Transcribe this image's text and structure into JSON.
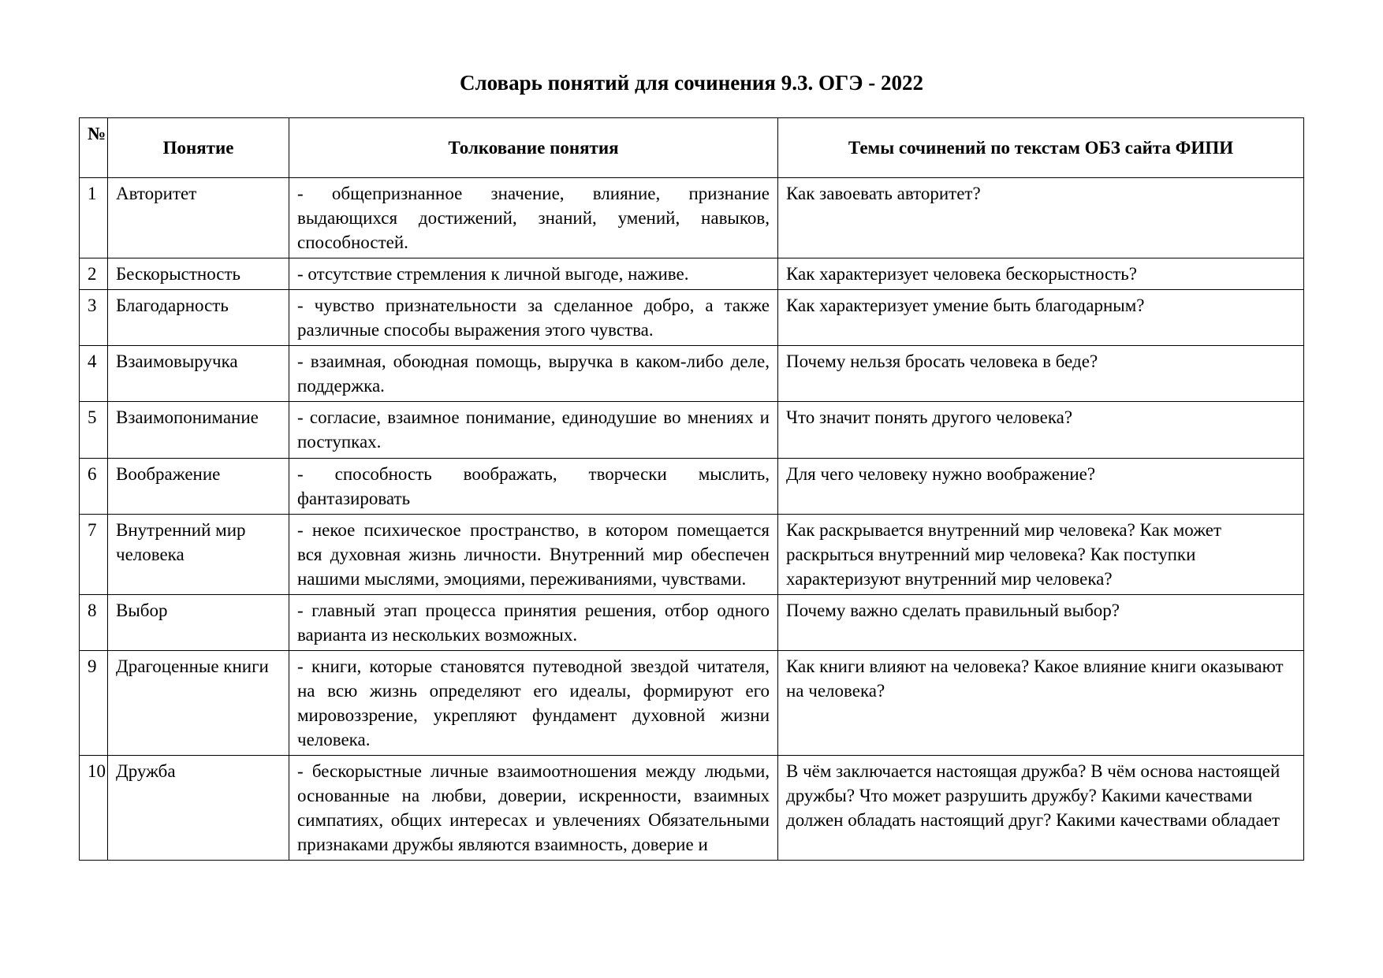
{
  "document": {
    "title": "Словарь понятий для сочинения 9.3.  ОГЭ - 2022",
    "background_color": "#ffffff",
    "text_color": "#000000",
    "font_family": "Times New Roman",
    "title_fontsize": 27,
    "cell_fontsize": 23
  },
  "table": {
    "border_color": "#000000",
    "columns": {
      "num": "№",
      "concept": "Понятие",
      "interpretation": "Толкование понятия",
      "themes": "Темы сочинений по текстам ОБЗ сайта ФИПИ"
    },
    "column_widths": {
      "num": 36,
      "concept": 230,
      "interpretation": 620
    },
    "rows": [
      {
        "num": "1",
        "concept": "Авторитет",
        "interpretation": "- общепризнанное значение, влияние, признание выдающихся достижений, знаний, умений, навыков, способностей.",
        "themes": "Как завоевать авторитет?"
      },
      {
        "num": "2",
        "concept": "Бескорыстность",
        "interpretation": "- отсутствие стремления к личной выгоде, наживе.",
        "themes": "Как характеризует человека бескорыстность?"
      },
      {
        "num": "3",
        "concept": "Благодарность",
        "interpretation": "- чувство признательности за сделанное добро, а также различные способы выражения этого чувства.",
        "themes": "Как характеризует умение быть благодарным?"
      },
      {
        "num": "4",
        "concept": "Взаимовыручка",
        "interpretation": "- взаимная, обоюдная помощь, выручка в каком-либо деле, поддержка.",
        "themes": "Почему нельзя бросать человека в беде?"
      },
      {
        "num": "5",
        "concept": "Взаимопонимание",
        "interpretation": "- согласие, взаимное понимание, единодушие во мнениях и поступках.",
        "themes": "Что значит понять другого человека?"
      },
      {
        "num": "6",
        "concept": "Воображение",
        "interpretation": "- способность воображать, творчески мыслить, фантазировать",
        "themes": "Для чего человеку нужно воображение?"
      },
      {
        "num": "7",
        "concept": "Внутренний мир человека",
        "interpretation": "- некое психическое пространство, в котором помещается вся духовная жизнь личности. Внутренний мир обеспечен нашими мыслями, эмоциями, переживаниями, чувствами.",
        "themes": "Как раскрывается внутренний мир человека? Как может раскрыться внутренний мир человека? Как поступки характеризуют внутренний мир человека?"
      },
      {
        "num": "8",
        "concept": "Выбор",
        "interpretation": "- главный этап процесса принятия решения, отбор одного варианта из нескольких возможных.",
        "themes": "Почему важно сделать правильный выбор?"
      },
      {
        "num": "9",
        "concept": "Драгоценные книги",
        "interpretation": "- книги, которые становятся путеводной звездой читателя, на всю жизнь определяют его идеалы, формируют его мировоззрение, укрепляют фундамент духовной жизни человека.",
        "themes": "Как книги влияют на человека? Какое влияние книги оказывают на человека?"
      },
      {
        "num": "10",
        "concept": "Дружба",
        "interpretation": "- бескорыстные личные взаимоотношения между людьми, основанные на любви, доверии, искренности, взаимных симпатиях, общих интересах и увлечениях  Обязательными признаками дружбы являются взаимность, доверие и",
        "themes": "В чём заключается настоящая дружба? В чём основа настоящей дружбы? Что может разрушить дружбу? Какими качествами должен обладать настоящий друг? Какими качествами обладает"
      }
    ]
  }
}
